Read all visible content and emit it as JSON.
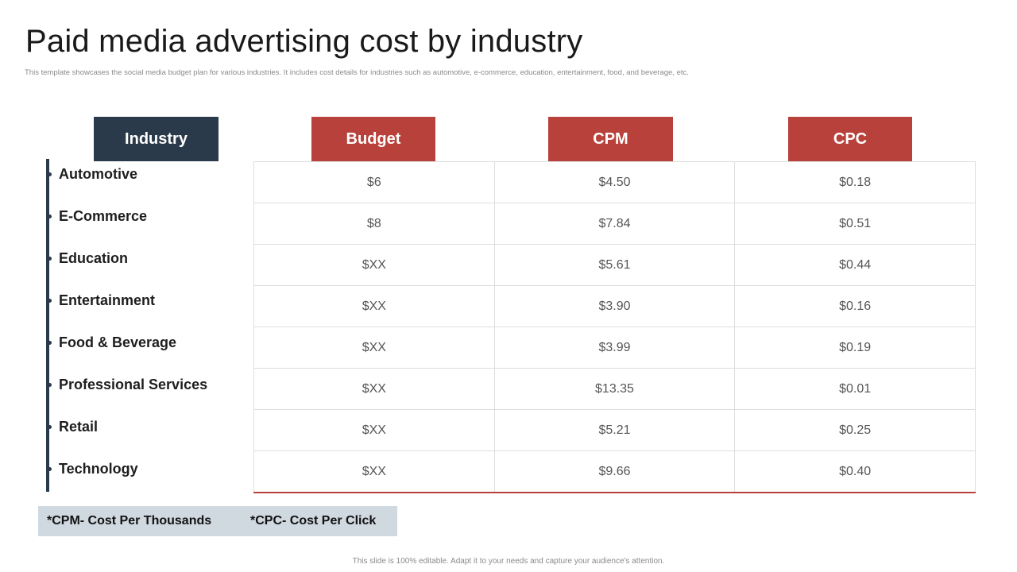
{
  "slide": {
    "title": "Paid media advertising cost by industry",
    "subtitle": "This template showcases the social media budget plan for various industries. It includes cost details for industries such as automotive, e-commerce, education, entertainment, food, and beverage, etc.",
    "footer": "This slide is 100% editable. Adapt it to your needs and capture your audience's attention."
  },
  "headers": {
    "industry": "Industry",
    "budget": "Budget",
    "cpm": "CPM",
    "cpc": "CPC"
  },
  "rows": [
    {
      "industry": "Automotive",
      "budget": "$6",
      "cpm": "$4.50",
      "cpc": "$0.18"
    },
    {
      "industry": "E-Commerce",
      "budget": "$8",
      "cpm": "$7.84",
      "cpc": "$0.51"
    },
    {
      "industry": "Education",
      "budget": "$XX",
      "cpm": "$5.61",
      "cpc": "$0.44"
    },
    {
      "industry": "Entertainment",
      "budget": "$XX",
      "cpm": "$3.90",
      "cpc": "$0.16"
    },
    {
      "industry": "Food & Beverage",
      "budget": "$XX",
      "cpm": "$3.99",
      "cpc": "$0.19"
    },
    {
      "industry": "Professional Services",
      "budget": "$XX",
      "cpm": "$13.35",
      "cpc": "$0.01"
    },
    {
      "industry": "Retail",
      "budget": "$XX",
      "cpm": "$5.21",
      "cpc": "$0.25"
    },
    {
      "industry": "Technology",
      "budget": "$XX",
      "cpm": "$9.66",
      "cpc": "$0.40"
    }
  ],
  "legend": {
    "cpm_note": "*CPM- Cost Per Thousands",
    "cpc_note": "*CPC- Cost Per Click"
  },
  "colors": {
    "navy": "#2b3a4a",
    "accent_red": "#b8423b",
    "legend_bg": "#d0d8e0"
  }
}
